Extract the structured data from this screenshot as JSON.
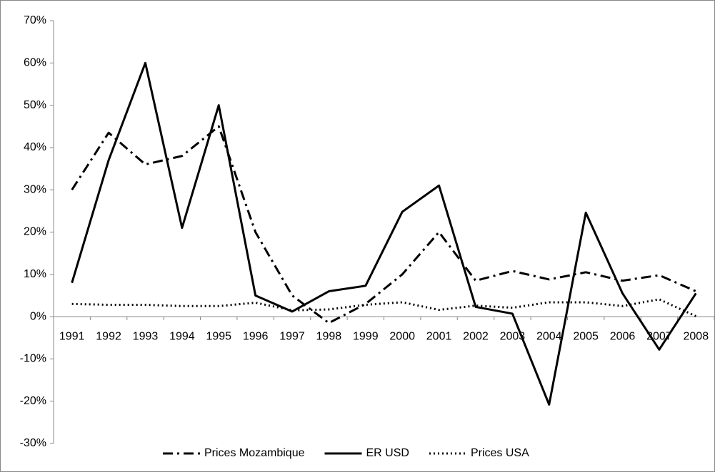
{
  "chart_data": {
    "type": "line",
    "categories": [
      "1991",
      "1992",
      "1993",
      "1994",
      "1995",
      "1996",
      "1997",
      "1998",
      "1999",
      "2000",
      "2001",
      "2002",
      "2003",
      "2004",
      "2005",
      "2006",
      "2007",
      "2008"
    ],
    "series": [
      {
        "name": "Prices Mozambique",
        "color": "#000000",
        "dash": "dashdot",
        "values": [
          30,
          43.5,
          36,
          38,
          45,
          20,
          5,
          -1.5,
          3,
          10,
          20,
          8.5,
          10.8,
          8.8,
          10.5,
          8.5,
          9.8,
          6
        ]
      },
      {
        "name": "ER USD",
        "color": "#000000",
        "dash": "solid",
        "values": [
          8,
          37,
          60,
          21,
          50,
          5,
          1.2,
          6,
          7.3,
          24.8,
          31,
          2.3,
          0.7,
          -20.8,
          24.6,
          5.5,
          -7.8,
          5.5
        ]
      },
      {
        "name": "Prices USA",
        "color": "#000000",
        "dash": "dotted",
        "values": [
          3,
          2.8,
          2.8,
          2.5,
          2.5,
          3.3,
          1.5,
          1.7,
          2.8,
          3.4,
          1.6,
          2.6,
          2.1,
          3.4,
          3.4,
          2.5,
          4.1,
          0.1
        ]
      }
    ],
    "ylim": [
      -30,
      70
    ],
    "yticks": [
      {
        "value": -30,
        "label": "-30%"
      },
      {
        "value": -20,
        "label": "-20%"
      },
      {
        "value": -10,
        "label": "-10%"
      },
      {
        "value": 0,
        "label": "0%"
      },
      {
        "value": 10,
        "label": "10%"
      },
      {
        "value": 20,
        "label": "20%"
      },
      {
        "value": 30,
        "label": "30%"
      },
      {
        "value": 40,
        "label": "40%"
      },
      {
        "value": 50,
        "label": "50%"
      },
      {
        "value": 60,
        "label": "60%"
      },
      {
        "value": 70,
        "label": "70%"
      }
    ],
    "grid": false,
    "legend": "bottom"
  }
}
